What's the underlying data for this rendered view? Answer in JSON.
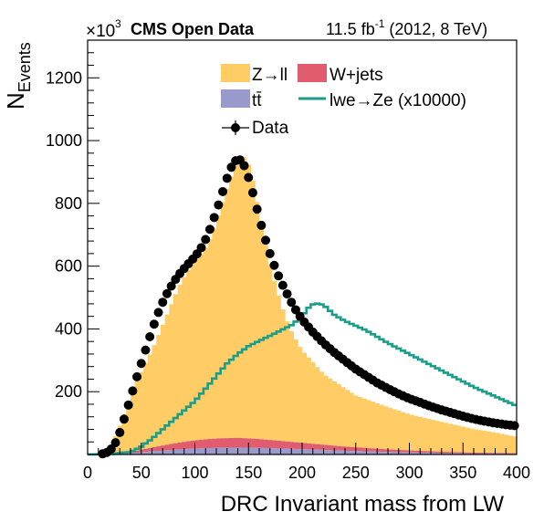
{
  "header": {
    "exponent_base": "×10",
    "exponent_power": "3",
    "experiment": "CMS Open Data",
    "lumi_value": "11.5 fb",
    "lumi_power": "-1",
    "lumi_rest": " (2012, 8 TeV)"
  },
  "chart_data": {
    "type": "histogram",
    "xlabel": "DRC Invariant mass from LW",
    "ylabel_main": "N",
    "ylabel_sub": "Events",
    "xlim": [
      0,
      400
    ],
    "ylim": [
      0,
      1320
    ],
    "xticks": [
      0,
      50,
      100,
      150,
      200,
      250,
      300,
      350,
      400
    ],
    "yticks": [
      200,
      400,
      600,
      800,
      1000,
      1200
    ],
    "y_scale_note": "×10^3",
    "legend_position": "top-center",
    "legend": [
      {
        "label": "Z→ll",
        "kind": "fill",
        "color": "#ffcc66"
      },
      {
        "label": "W+jets",
        "kind": "fill",
        "color": "#e05c6e"
      },
      {
        "label": "tt̄",
        "kind": "fill",
        "color": "#9999cc"
      },
      {
        "label": "lwe→Ze (x10000)",
        "kind": "line",
        "color": "#1a9e8a"
      },
      {
        "label": "Data",
        "kind": "marker",
        "color": "#000000"
      }
    ],
    "bins": {
      "start": 0,
      "width": 4,
      "count": 100
    },
    "series": [
      {
        "name": "Z→ll",
        "kind": "stack",
        "color": "#ffcc66",
        "points": [
          [
            0,
            0
          ],
          [
            12,
            0
          ],
          [
            16,
            6
          ],
          [
            20,
            18
          ],
          [
            24,
            40
          ],
          [
            28,
            70
          ],
          [
            32,
            105
          ],
          [
            36,
            140
          ],
          [
            40,
            175
          ],
          [
            44,
            205
          ],
          [
            48,
            235
          ],
          [
            52,
            260
          ],
          [
            56,
            285
          ],
          [
            60,
            310
          ],
          [
            64,
            340
          ],
          [
            68,
            370
          ],
          [
            72,
            400
          ],
          [
            76,
            430
          ],
          [
            80,
            460
          ],
          [
            84,
            490
          ],
          [
            88,
            515
          ],
          [
            92,
            535
          ],
          [
            96,
            555
          ],
          [
            100,
            570
          ],
          [
            104,
            585
          ],
          [
            108,
            600
          ],
          [
            112,
            620
          ],
          [
            116,
            650
          ],
          [
            120,
            690
          ],
          [
            124,
            730
          ],
          [
            128,
            775
          ],
          [
            132,
            815
          ],
          [
            136,
            850
          ],
          [
            140,
            885
          ],
          [
            144,
            900
          ],
          [
            148,
            890
          ],
          [
            152,
            855
          ],
          [
            156,
            790
          ],
          [
            160,
            720
          ],
          [
            164,
            650
          ],
          [
            168,
            590
          ],
          [
            172,
            530
          ],
          [
            176,
            485
          ],
          [
            180,
            440
          ],
          [
            184,
            400
          ],
          [
            188,
            365
          ],
          [
            192,
            340
          ],
          [
            196,
            315
          ],
          [
            200,
            295
          ],
          [
            220,
            225
          ],
          [
            250,
            165
          ],
          [
            280,
            135
          ],
          [
            300,
            115
          ],
          [
            330,
            95
          ],
          [
            360,
            75
          ],
          [
            380,
            65
          ],
          [
            400,
            52
          ]
        ]
      },
      {
        "name": "W+jets",
        "kind": "stack",
        "color": "#e05c6e",
        "points": [
          [
            0,
            0
          ],
          [
            20,
            0
          ],
          [
            40,
            5
          ],
          [
            60,
            12
          ],
          [
            80,
            20
          ],
          [
            100,
            26
          ],
          [
            120,
            30
          ],
          [
            140,
            31
          ],
          [
            160,
            28
          ],
          [
            180,
            24
          ],
          [
            200,
            20
          ],
          [
            240,
            13
          ],
          [
            280,
            8
          ],
          [
            320,
            5
          ],
          [
            360,
            3
          ],
          [
            400,
            2
          ]
        ]
      },
      {
        "name": "tt̄",
        "kind": "stack",
        "color": "#9999cc",
        "points": [
          [
            0,
            0
          ],
          [
            20,
            0
          ],
          [
            40,
            4
          ],
          [
            60,
            10
          ],
          [
            80,
            15
          ],
          [
            100,
            19
          ],
          [
            120,
            21
          ],
          [
            140,
            22
          ],
          [
            160,
            21
          ],
          [
            180,
            19
          ],
          [
            200,
            17
          ],
          [
            240,
            12
          ],
          [
            280,
            8
          ],
          [
            320,
            5
          ],
          [
            360,
            3
          ],
          [
            400,
            2
          ]
        ]
      },
      {
        "name": "lwe→Ze (x10000)",
        "kind": "line",
        "color": "#1a9e8a",
        "points": [
          [
            0,
            0
          ],
          [
            20,
            1
          ],
          [
            40,
            8
          ],
          [
            50,
            25
          ],
          [
            60,
            50
          ],
          [
            70,
            80
          ],
          [
            80,
            110
          ],
          [
            90,
            140
          ],
          [
            100,
            170
          ],
          [
            110,
            210
          ],
          [
            120,
            250
          ],
          [
            130,
            290
          ],
          [
            140,
            320
          ],
          [
            150,
            345
          ],
          [
            160,
            362
          ],
          [
            170,
            378
          ],
          [
            180,
            395
          ],
          [
            190,
            412
          ],
          [
            200,
            440
          ],
          [
            205,
            465
          ],
          [
            210,
            478
          ],
          [
            216,
            482
          ],
          [
            222,
            470
          ],
          [
            230,
            445
          ],
          [
            240,
            425
          ],
          [
            260,
            395
          ],
          [
            280,
            355
          ],
          [
            300,
            320
          ],
          [
            320,
            285
          ],
          [
            340,
            250
          ],
          [
            360,
            215
          ],
          [
            380,
            185
          ],
          [
            400,
            155
          ]
        ]
      },
      {
        "name": "Data",
        "kind": "points",
        "color": "#000000",
        "points": [
          [
            0,
            0
          ],
          [
            10,
            0
          ],
          [
            16,
            3
          ],
          [
            20,
            10
          ],
          [
            24,
            25
          ],
          [
            28,
            50
          ],
          [
            32,
            90
          ],
          [
            36,
            135
          ],
          [
            40,
            180
          ],
          [
            44,
            225
          ],
          [
            48,
            270
          ],
          [
            52,
            310
          ],
          [
            56,
            355
          ],
          [
            60,
            395
          ],
          [
            64,
            435
          ],
          [
            68,
            470
          ],
          [
            72,
            500
          ],
          [
            76,
            525
          ],
          [
            80,
            548
          ],
          [
            84,
            568
          ],
          [
            88,
            585
          ],
          [
            92,
            600
          ],
          [
            96,
            615
          ],
          [
            100,
            630
          ],
          [
            104,
            648
          ],
          [
            108,
            670
          ],
          [
            112,
            700
          ],
          [
            116,
            735
          ],
          [
            120,
            775
          ],
          [
            124,
            815
          ],
          [
            128,
            860
          ],
          [
            132,
            900
          ],
          [
            136,
            930
          ],
          [
            140,
            942
          ],
          [
            144,
            935
          ],
          [
            148,
            905
          ],
          [
            152,
            860
          ],
          [
            156,
            808
          ],
          [
            160,
            755
          ],
          [
            164,
            705
          ],
          [
            168,
            660
          ],
          [
            172,
            620
          ],
          [
            176,
            585
          ],
          [
            180,
            553
          ],
          [
            184,
            525
          ],
          [
            188,
            498
          ],
          [
            192,
            472
          ],
          [
            196,
            450
          ],
          [
            200,
            430
          ],
          [
            210,
            390
          ],
          [
            220,
            355
          ],
          [
            230,
            325
          ],
          [
            240,
            298
          ],
          [
            250,
            272
          ],
          [
            260,
            250
          ],
          [
            270,
            228
          ],
          [
            280,
            210
          ],
          [
            290,
            193
          ],
          [
            300,
            178
          ],
          [
            310,
            166
          ],
          [
            320,
            153
          ],
          [
            330,
            142
          ],
          [
            340,
            132
          ],
          [
            350,
            122
          ],
          [
            360,
            113
          ],
          [
            370,
            106
          ],
          [
            380,
            100
          ],
          [
            390,
            95
          ],
          [
            398,
            92
          ]
        ]
      }
    ]
  }
}
